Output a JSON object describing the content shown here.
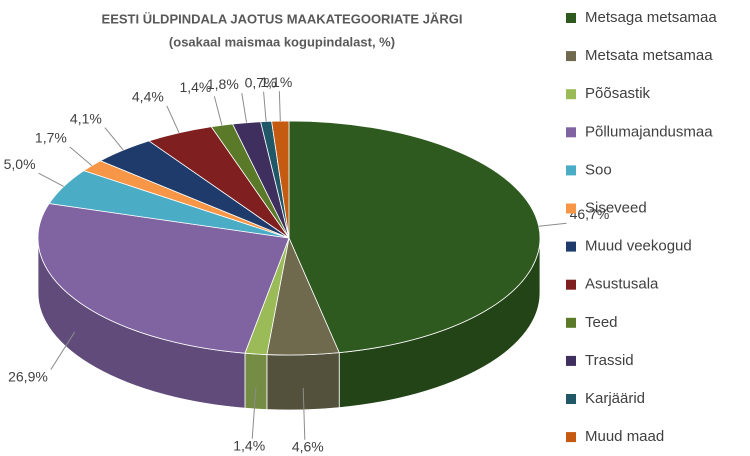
{
  "chart_data": {
    "type": "pie",
    "title": "EESTI ÜLDPINDALA JAOTUS MAAKATEGOORIATE JÄRGI",
    "subtitle": "(osakaal maismaa kogupindalast, %)",
    "categories": [
      "Metsaga metsamaa",
      "Metsata metsamaa",
      "Põõsastik",
      "Põllumajandusmaa",
      "Soo",
      "Siseveed",
      "Muud veekogud",
      "Asustusala",
      "Teed",
      "Trassid",
      "Karjäärid",
      "Muud maad"
    ],
    "values": [
      46.7,
      4.6,
      1.4,
      26.9,
      5.0,
      1.7,
      4.1,
      4.4,
      1.4,
      1.8,
      0.7,
      1.1
    ],
    "value_labels": [
      "46,7%",
      "4,6%",
      "1,4%",
      "26,9%",
      "5,0%",
      "1,7%",
      "4,1%",
      "4,4%",
      "1,4%",
      "1,8%",
      "0,7%",
      "1,1%"
    ],
    "colors": [
      "#2f5a1f",
      "#6f6a4e",
      "#9bbb59",
      "#8064a2",
      "#4bacc6",
      "#f79646",
      "#1f3b6b",
      "#7f1f1f",
      "#5a7a2a",
      "#3f2f5f",
      "#205867",
      "#c55a11"
    ]
  }
}
